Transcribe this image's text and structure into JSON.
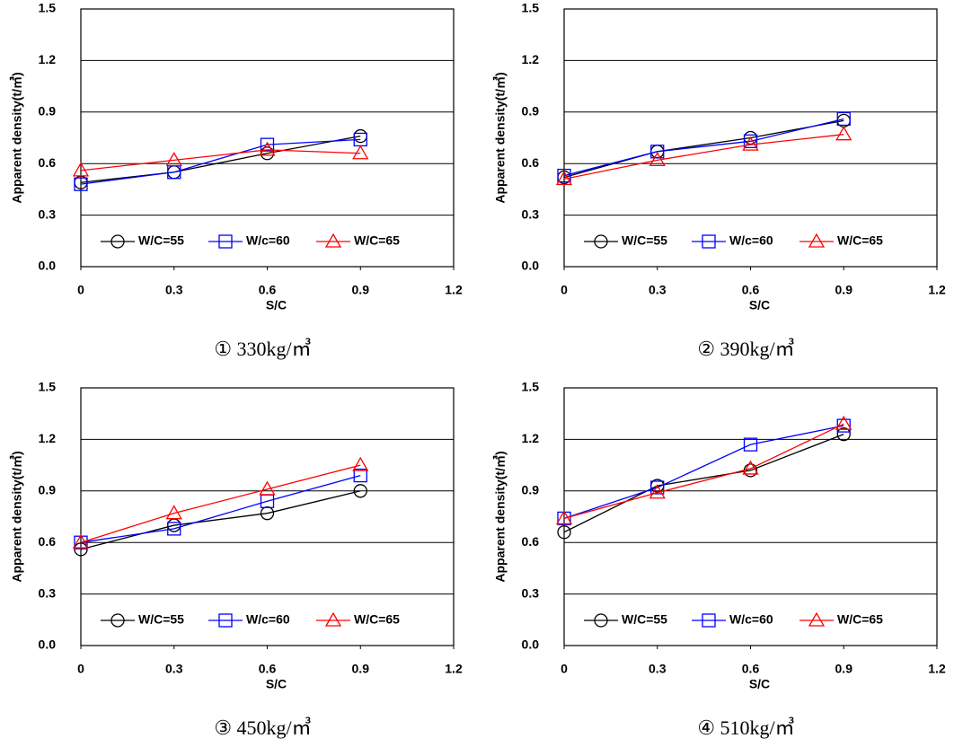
{
  "chart_data": [
    {
      "type": "line",
      "caption": "① 330kg/㎥",
      "xlabel": "S/C",
      "ylabel": "Apparent density(t/㎥)",
      "x": [
        0,
        0.3,
        0.6,
        0.9
      ],
      "xlim": [
        0,
        1.2
      ],
      "xticks": [
        0,
        0.3,
        0.6,
        0.9,
        1.2
      ],
      "ylim": [
        0,
        1.5
      ],
      "yticks": [
        {
          "value": 0,
          "label": "0.0"
        },
        0.3,
        0.6,
        0.9,
        1.2,
        1.5
      ],
      "grid": true,
      "legend": "lower center",
      "series": [
        {
          "name": "W/C=55",
          "color": "#000000",
          "marker": "circle",
          "values": [
            0.49,
            0.55,
            0.66,
            0.76
          ]
        },
        {
          "name": "W/c=60",
          "color": "#0000ff",
          "marker": "square",
          "values": [
            0.48,
            0.55,
            0.71,
            0.74
          ]
        },
        {
          "name": "W/C=65",
          "color": "#ff0000",
          "marker": "triangle",
          "values": [
            0.56,
            0.62,
            0.68,
            0.66
          ]
        }
      ]
    },
    {
      "type": "line",
      "caption": "② 390kg/㎥",
      "xlabel": "S/C",
      "ylabel": "Apparent density(t/㎥)",
      "x": [
        0,
        0.3,
        0.6,
        0.9
      ],
      "xlim": [
        0,
        1.2
      ],
      "xticks": [
        0,
        0.3,
        0.6,
        0.9,
        1.2
      ],
      "ylim": [
        0,
        1.5
      ],
      "yticks": [
        {
          "value": 0,
          "label": "0.0"
        },
        0.3,
        0.6,
        0.9,
        1.2,
        1.5
      ],
      "grid": true,
      "legend": "lower center",
      "series": [
        {
          "name": "W/C=55",
          "color": "#000000",
          "marker": "circle",
          "values": [
            0.52,
            0.67,
            0.75,
            0.85
          ]
        },
        {
          "name": "W/c=60",
          "color": "#0000ff",
          "marker": "square",
          "values": [
            0.53,
            0.67,
            0.73,
            0.86
          ]
        },
        {
          "name": "W/C=65",
          "color": "#ff0000",
          "marker": "triangle",
          "values": [
            0.51,
            0.62,
            0.71,
            0.77
          ]
        }
      ]
    },
    {
      "type": "line",
      "caption": "③ 450kg/㎥",
      "xlabel": "S/C",
      "ylabel": "Apparent density(t/㎥)",
      "x": [
        0,
        0.3,
        0.6,
        0.9
      ],
      "xlim": [
        0,
        1.2
      ],
      "xticks": [
        0,
        0.3,
        0.6,
        0.9,
        1.2
      ],
      "ylim": [
        0,
        1.5
      ],
      "yticks": [
        {
          "value": 0,
          "label": "0.0"
        },
        0.3,
        0.6,
        0.9,
        1.2,
        1.5
      ],
      "grid": true,
      "legend": "lower center",
      "series": [
        {
          "name": "W/C=55",
          "color": "#000000",
          "marker": "circle",
          "values": [
            0.56,
            0.7,
            0.77,
            0.9
          ]
        },
        {
          "name": "W/c=60",
          "color": "#0000ff",
          "marker": "square",
          "values": [
            0.6,
            0.68,
            0.84,
            0.99
          ]
        },
        {
          "name": "W/C=65",
          "color": "#ff0000",
          "marker": "triangle",
          "values": [
            0.6,
            0.77,
            0.91,
            1.05
          ]
        }
      ]
    },
    {
      "type": "line",
      "caption": "④ 510kg/㎥",
      "xlabel": "S/C",
      "ylabel": "Apparent density(t/㎥)",
      "x": [
        0,
        0.3,
        0.6,
        0.9
      ],
      "xlim": [
        0,
        1.2
      ],
      "xticks": [
        0,
        0.3,
        0.6,
        0.9,
        1.2
      ],
      "ylim": [
        0,
        1.5
      ],
      "yticks": [
        {
          "value": 0,
          "label": "0.0"
        },
        0.3,
        0.6,
        0.9,
        1.2,
        1.5
      ],
      "grid": true,
      "legend": "lower center",
      "series": [
        {
          "name": "W/C=55",
          "color": "#000000",
          "marker": "circle",
          "values": [
            0.66,
            0.93,
            1.02,
            1.23
          ]
        },
        {
          "name": "W/c=60",
          "color": "#0000ff",
          "marker": "square",
          "values": [
            0.74,
            0.92,
            1.17,
            1.28
          ]
        },
        {
          "name": "W/C=65",
          "color": "#ff0000",
          "marker": "triangle",
          "values": [
            0.74,
            0.89,
            1.03,
            1.29
          ]
        }
      ]
    }
  ]
}
